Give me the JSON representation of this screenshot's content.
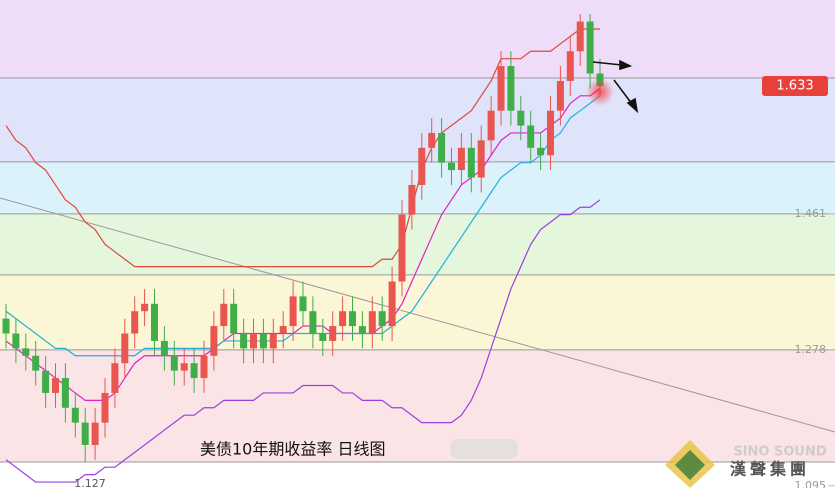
{
  "chart_data": {
    "type": "candlestick",
    "title": "美债10年期收益率  日线图",
    "watermark": "SINO SOUND",
    "watermark_cn": "漢聲集團",
    "ylim": [
      1.092,
      1.749
    ],
    "yticks": [
      1.461,
      1.278,
      1.095
    ],
    "levels": [
      1.644,
      1.531,
      1.461,
      1.379,
      1.278,
      1.127
    ],
    "up_color": "#e8564f",
    "down_color": "#3fae49",
    "open": [
      1.32,
      1.3,
      1.28,
      1.27,
      1.25,
      1.22,
      1.24,
      1.2,
      1.18,
      1.15,
      1.18,
      1.22,
      1.26,
      1.3,
      1.33,
      1.34,
      1.29,
      1.27,
      1.25,
      1.26,
      1.24,
      1.27,
      1.31,
      1.34,
      1.3,
      1.28,
      1.3,
      1.28,
      1.3,
      1.31,
      1.35,
      1.33,
      1.3,
      1.29,
      1.31,
      1.33,
      1.31,
      1.3,
      1.33,
      1.31,
      1.37,
      1.46,
      1.5,
      1.55,
      1.57,
      1.53,
      1.52,
      1.55,
      1.51,
      1.56,
      1.6,
      1.66,
      1.6,
      1.58,
      1.55,
      1.54,
      1.6,
      1.64,
      1.68,
      1.72,
      1.65
    ],
    "high": [
      1.34,
      1.32,
      1.3,
      1.29,
      1.27,
      1.26,
      1.26,
      1.22,
      1.2,
      1.2,
      1.24,
      1.28,
      1.32,
      1.35,
      1.36,
      1.36,
      1.31,
      1.29,
      1.28,
      1.28,
      1.29,
      1.33,
      1.36,
      1.36,
      1.32,
      1.32,
      1.32,
      1.32,
      1.33,
      1.37,
      1.37,
      1.35,
      1.32,
      1.33,
      1.35,
      1.35,
      1.33,
      1.35,
      1.35,
      1.39,
      1.48,
      1.52,
      1.57,
      1.59,
      1.59,
      1.55,
      1.57,
      1.57,
      1.58,
      1.62,
      1.68,
      1.68,
      1.62,
      1.6,
      1.57,
      1.62,
      1.66,
      1.7,
      1.73,
      1.73,
      1.67
    ],
    "low": [
      1.28,
      1.26,
      1.25,
      1.23,
      1.2,
      1.2,
      1.18,
      1.16,
      1.127,
      1.13,
      1.16,
      1.2,
      1.24,
      1.28,
      1.31,
      1.27,
      1.25,
      1.23,
      1.23,
      1.22,
      1.22,
      1.25,
      1.29,
      1.28,
      1.26,
      1.26,
      1.26,
      1.26,
      1.28,
      1.29,
      1.31,
      1.28,
      1.27,
      1.27,
      1.29,
      1.29,
      1.28,
      1.28,
      1.29,
      1.29,
      1.35,
      1.44,
      1.48,
      1.53,
      1.51,
      1.5,
      1.5,
      1.49,
      1.49,
      1.54,
      1.58,
      1.58,
      1.56,
      1.53,
      1.52,
      1.52,
      1.58,
      1.62,
      1.66,
      1.63,
      1.62
    ],
    "close": [
      1.3,
      1.28,
      1.27,
      1.25,
      1.22,
      1.24,
      1.2,
      1.18,
      1.15,
      1.18,
      1.22,
      1.26,
      1.3,
      1.33,
      1.34,
      1.29,
      1.27,
      1.25,
      1.26,
      1.24,
      1.27,
      1.31,
      1.34,
      1.3,
      1.28,
      1.3,
      1.28,
      1.3,
      1.31,
      1.35,
      1.33,
      1.3,
      1.29,
      1.31,
      1.33,
      1.31,
      1.3,
      1.33,
      1.31,
      1.37,
      1.46,
      1.5,
      1.55,
      1.57,
      1.53,
      1.52,
      1.55,
      1.51,
      1.56,
      1.6,
      1.66,
      1.6,
      1.58,
      1.55,
      1.54,
      1.6,
      1.64,
      1.68,
      1.72,
      1.65,
      1.633
    ],
    "series": [
      {
        "color": "#e0483c",
        "values": [
          1.58,
          1.56,
          1.55,
          1.53,
          1.52,
          1.5,
          1.48,
          1.47,
          1.45,
          1.44,
          1.42,
          1.41,
          1.4,
          1.39,
          1.39,
          1.39,
          1.39,
          1.39,
          1.39,
          1.39,
          1.39,
          1.39,
          1.39,
          1.39,
          1.39,
          1.39,
          1.39,
          1.39,
          1.39,
          1.39,
          1.39,
          1.39,
          1.39,
          1.39,
          1.39,
          1.39,
          1.39,
          1.39,
          1.4,
          1.4,
          1.42,
          1.47,
          1.52,
          1.55,
          1.57,
          1.58,
          1.59,
          1.6,
          1.62,
          1.64,
          1.67,
          1.67,
          1.67,
          1.68,
          1.68,
          1.68,
          1.69,
          1.7,
          1.71,
          1.71,
          1.71
        ]
      },
      {
        "color": "#e020c8",
        "values": [
          1.29,
          1.28,
          1.27,
          1.26,
          1.25,
          1.24,
          1.23,
          1.22,
          1.21,
          1.21,
          1.21,
          1.22,
          1.24,
          1.26,
          1.27,
          1.27,
          1.27,
          1.27,
          1.27,
          1.27,
          1.27,
          1.28,
          1.29,
          1.3,
          1.3,
          1.3,
          1.3,
          1.3,
          1.3,
          1.3,
          1.31,
          1.31,
          1.31,
          1.3,
          1.3,
          1.3,
          1.3,
          1.3,
          1.31,
          1.32,
          1.34,
          1.37,
          1.4,
          1.43,
          1.46,
          1.48,
          1.5,
          1.51,
          1.52,
          1.54,
          1.56,
          1.57,
          1.57,
          1.57,
          1.57,
          1.58,
          1.59,
          1.61,
          1.62,
          1.62,
          1.63
        ]
      },
      {
        "color": "#20b0e0",
        "values": [
          1.33,
          1.32,
          1.31,
          1.3,
          1.29,
          1.28,
          1.28,
          1.27,
          1.27,
          1.27,
          1.27,
          1.27,
          1.27,
          1.27,
          1.28,
          1.28,
          1.28,
          1.28,
          1.28,
          1.28,
          1.28,
          1.28,
          1.29,
          1.29,
          1.29,
          1.29,
          1.29,
          1.29,
          1.29,
          1.3,
          1.3,
          1.3,
          1.3,
          1.3,
          1.3,
          1.3,
          1.3,
          1.3,
          1.3,
          1.31,
          1.32,
          1.33,
          1.35,
          1.37,
          1.39,
          1.41,
          1.43,
          1.45,
          1.47,
          1.49,
          1.51,
          1.52,
          1.53,
          1.53,
          1.54,
          1.56,
          1.57,
          1.59,
          1.6,
          1.61,
          1.62
        ]
      },
      {
        "color": "#9a40e0",
        "values": [
          1.13,
          1.12,
          1.11,
          1.1,
          1.1,
          1.1,
          1.1,
          1.1,
          1.11,
          1.11,
          1.12,
          1.12,
          1.13,
          1.14,
          1.15,
          1.16,
          1.17,
          1.18,
          1.19,
          1.19,
          1.2,
          1.2,
          1.21,
          1.21,
          1.21,
          1.21,
          1.22,
          1.22,
          1.22,
          1.22,
          1.23,
          1.23,
          1.23,
          1.23,
          1.22,
          1.22,
          1.21,
          1.21,
          1.21,
          1.2,
          1.2,
          1.19,
          1.18,
          1.18,
          1.18,
          1.18,
          1.19,
          1.21,
          1.24,
          1.28,
          1.32,
          1.36,
          1.39,
          1.42,
          1.44,
          1.45,
          1.46,
          1.46,
          1.47,
          1.47,
          1.48
        ]
      }
    ]
  }
}
